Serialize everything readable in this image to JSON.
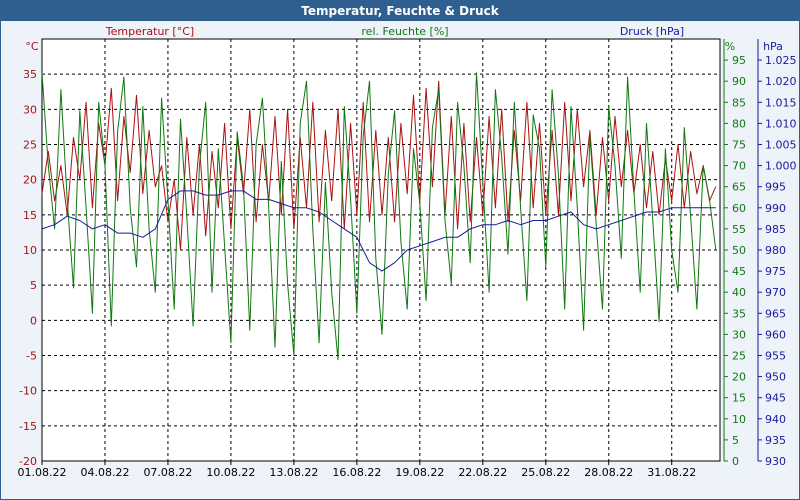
{
  "window": {
    "title": "Temperatur, Feuchte & Druck"
  },
  "chart_data": {
    "type": "line",
    "title": "Temperatur, Feuchte & Druck",
    "grid": true,
    "x_ticks": [
      "01.08.22",
      "04.08.22",
      "07.08.22",
      "10.08.22",
      "13.08.22",
      "16.08.22",
      "19.08.22",
      "22.08.22",
      "25.08.22",
      "28.08.22",
      "31.08.22"
    ],
    "axes": {
      "temperature": {
        "label": "Temperatur [°C]",
        "unit": "°C",
        "min": -20,
        "max": 40,
        "ticks": [
          -20,
          -15,
          -10,
          -5,
          0,
          5,
          10,
          15,
          20,
          25,
          30,
          35
        ]
      },
      "humidity": {
        "label": "rel. Feuchte [%]",
        "unit": "%",
        "min": 0,
        "max": 100,
        "ticks": [
          0,
          5,
          10,
          15,
          20,
          25,
          30,
          35,
          40,
          45,
          50,
          55,
          60,
          65,
          70,
          75,
          80,
          85,
          90,
          95
        ]
      },
      "pressure": {
        "label": "Druck [hPa]",
        "unit": "hPa",
        "min": 930,
        "max": 1030,
        "ticks": [
          "930",
          "935",
          "940",
          "945",
          "950",
          "955",
          "960",
          "965",
          "970",
          "975",
          "980",
          "985",
          "990",
          "995",
          "1.000",
          "1.005",
          "1.010",
          "1.015",
          "1.020",
          "1.025"
        ]
      }
    },
    "x_range_days": [
      0,
      32.3
    ],
    "series": [
      {
        "name": "Temperatur [°C]",
        "color": "#aa1111",
        "axis": "temperature",
        "x": [
          0.0,
          0.3,
          0.6,
          0.9,
          1.2,
          1.5,
          1.8,
          2.1,
          2.4,
          2.7,
          3.0,
          3.3,
          3.6,
          3.9,
          4.2,
          4.5,
          4.8,
          5.1,
          5.4,
          5.7,
          6.0,
          6.3,
          6.6,
          6.9,
          7.2,
          7.5,
          7.8,
          8.1,
          8.4,
          8.7,
          9.0,
          9.3,
          9.6,
          9.9,
          10.2,
          10.5,
          10.8,
          11.1,
          11.4,
          11.7,
          12.0,
          12.3,
          12.6,
          12.9,
          13.2,
          13.5,
          13.8,
          14.1,
          14.4,
          14.7,
          15.0,
          15.3,
          15.6,
          15.9,
          16.2,
          16.5,
          16.8,
          17.1,
          17.4,
          17.7,
          18.0,
          18.3,
          18.6,
          18.9,
          19.2,
          19.5,
          19.8,
          20.1,
          20.4,
          20.7,
          21.0,
          21.3,
          21.6,
          21.9,
          22.2,
          22.5,
          22.8,
          23.1,
          23.4,
          23.7,
          24.0,
          24.3,
          24.6,
          24.9,
          25.2,
          25.5,
          25.8,
          26.1,
          26.4,
          26.7,
          27.0,
          27.3,
          27.6,
          27.9,
          28.2,
          28.5,
          28.8,
          29.1,
          29.4,
          29.7,
          30.0,
          30.3,
          30.6,
          30.9,
          31.2,
          31.5,
          31.8,
          32.1
        ],
        "values": [
          18,
          24,
          17,
          22,
          15,
          26,
          20,
          31,
          16,
          28,
          22,
          33,
          17,
          29,
          21,
          32,
          18,
          27,
          19,
          22,
          14,
          20,
          10,
          26,
          15,
          25,
          12,
          24,
          16,
          28,
          13,
          26,
          18,
          30,
          14,
          25,
          17,
          29,
          15,
          30,
          13,
          26,
          16,
          31,
          14,
          27,
          17,
          30,
          13,
          28,
          15,
          31,
          14,
          27,
          15,
          26,
          14,
          28,
          18,
          32,
          17,
          33,
          19,
          34,
          15,
          29,
          13,
          28,
          14,
          26,
          15,
          29,
          16,
          30,
          14,
          27,
          17,
          31,
          16,
          28,
          15,
          27,
          15,
          31,
          17,
          30,
          19,
          27,
          15,
          26,
          17,
          29,
          19,
          27,
          18,
          25,
          16,
          24,
          15,
          23,
          17,
          25,
          16,
          24,
          18,
          22,
          17,
          19
        ]
      },
      {
        "name": "rel. Feuchte [%]",
        "color": "#117711",
        "axis": "humidity",
        "x": [
          0.0,
          0.3,
          0.6,
          0.9,
          1.2,
          1.5,
          1.8,
          2.1,
          2.4,
          2.7,
          3.0,
          3.3,
          3.6,
          3.9,
          4.2,
          4.5,
          4.8,
          5.1,
          5.4,
          5.7,
          6.0,
          6.3,
          6.6,
          6.9,
          7.2,
          7.5,
          7.8,
          8.1,
          8.4,
          8.7,
          9.0,
          9.3,
          9.6,
          9.9,
          10.2,
          10.5,
          10.8,
          11.1,
          11.4,
          11.7,
          12.0,
          12.3,
          12.6,
          12.9,
          13.2,
          13.5,
          13.8,
          14.1,
          14.4,
          14.7,
          15.0,
          15.3,
          15.6,
          15.9,
          16.2,
          16.5,
          16.8,
          17.1,
          17.4,
          17.7,
          18.0,
          18.3,
          18.6,
          18.9,
          19.2,
          19.5,
          19.8,
          20.1,
          20.4,
          20.7,
          21.0,
          21.3,
          21.6,
          21.9,
          22.2,
          22.5,
          22.8,
          23.1,
          23.4,
          23.7,
          24.0,
          24.3,
          24.6,
          24.9,
          25.2,
          25.5,
          25.8,
          26.1,
          26.4,
          26.7,
          27.0,
          27.3,
          27.6,
          27.9,
          28.2,
          28.5,
          28.8,
          29.1,
          29.4,
          29.7,
          30.0,
          30.3,
          30.6,
          30.9,
          31.2,
          31.5,
          31.8,
          32.1
        ],
        "values": [
          92,
          70,
          55,
          88,
          62,
          41,
          83,
          60,
          35,
          85,
          70,
          32,
          78,
          91,
          60,
          46,
          84,
          55,
          40,
          86,
          62,
          36,
          81,
          58,
          32,
          70,
          85,
          40,
          74,
          51,
          28,
          78,
          65,
          31,
          75,
          86,
          60,
          27,
          71,
          42,
          25,
          80,
          90,
          55,
          28,
          66,
          40,
          24,
          84,
          62,
          35,
          77,
          90,
          48,
          30,
          68,
          83,
          52,
          36,
          74,
          61,
          38,
          79,
          88,
          57,
          42,
          85,
          70,
          47,
          92,
          66,
          40,
          88,
          72,
          49,
          85,
          60,
          38,
          82,
          74,
          46,
          88,
          68,
          36,
          84,
          60,
          31,
          77,
          56,
          36,
          84,
          70,
          48,
          91,
          64,
          40,
          80,
          57,
          33,
          74,
          50,
          40,
          79,
          58,
          36,
          70,
          62,
          50
        ]
      },
      {
        "name": "Druck [hPa]",
        "color": "#1a1a99",
        "axis": "pressure",
        "x": [
          0.0,
          0.6,
          1.2,
          1.8,
          2.4,
          3.0,
          3.6,
          4.2,
          4.8,
          5.4,
          6.0,
          6.6,
          7.2,
          7.8,
          8.4,
          9.0,
          9.6,
          10.2,
          10.8,
          11.4,
          12.0,
          12.6,
          13.2,
          13.8,
          14.4,
          15.0,
          15.6,
          16.2,
          16.8,
          17.4,
          18.0,
          18.6,
          19.2,
          19.8,
          20.4,
          21.0,
          21.6,
          22.2,
          22.8,
          23.4,
          24.0,
          24.6,
          25.2,
          25.8,
          26.4,
          27.0,
          27.6,
          28.2,
          28.8,
          29.4,
          30.0,
          30.6,
          31.2,
          31.8,
          32.1
        ],
        "values": [
          985,
          986,
          988,
          987,
          985,
          986,
          984,
          984,
          983,
          985,
          992,
          994,
          994,
          993,
          993,
          994,
          994,
          992,
          992,
          991,
          990,
          990,
          989,
          987,
          985,
          983,
          977,
          975,
          977,
          980,
          981,
          982,
          983,
          983,
          985,
          986,
          986,
          987,
          986,
          987,
          987,
          988,
          989,
          986,
          985,
          986,
          987,
          988,
          989,
          989,
          990,
          990,
          990,
          990,
          990
        ]
      }
    ]
  }
}
